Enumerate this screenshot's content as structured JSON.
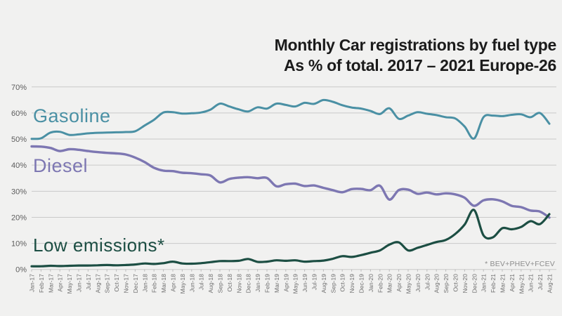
{
  "page": {
    "background": "#f1f1f0"
  },
  "title": {
    "line1": "Monthly Car registrations by fuel type",
    "line2": "As % of total. 2017 – 2021 Europe-26"
  },
  "footnote": "* BEV+PHEV+FCEV",
  "colors": {
    "gasoline": "#4a90a4",
    "diesel": "#7d77b2",
    "low_emissions": "#1c4e43",
    "grid": "#c9c9c9",
    "axis_text": "#5c5c5c",
    "x_tick_text": "#6e6e6e",
    "title_text": "#1b1b1b"
  },
  "chart_data": {
    "type": "line",
    "title": "Monthly Car registrations by fuel type As % of total. 2017 – 2021 Europe-26",
    "xlabel": "",
    "ylabel": "",
    "ylim": [
      0,
      70
    ],
    "yticks": [
      0,
      10,
      20,
      30,
      40,
      50,
      60,
      70
    ],
    "ytick_suffix": "%",
    "grid": true,
    "legend_position": "inline-left-labels",
    "x_labels": [
      "Jan-17",
      "Feb-17",
      "Mar-17",
      "Apr-17",
      "May-17",
      "Jun-17",
      "Jul-17",
      "Aug-17",
      "Sep-17",
      "Oct-17",
      "Nov-17",
      "Dec-17",
      "Jan-18",
      "Feb-18",
      "Mar-18",
      "Apr-18",
      "May-18",
      "Jun-18",
      "Jul-18",
      "Aug-18",
      "Sep-18",
      "Oct-18",
      "Nov-18",
      "Dec-18",
      "Jan-19",
      "Feb-19",
      "Mar-19",
      "Apr-19",
      "May-19",
      "Jun-19",
      "Jul-19",
      "Aug-19",
      "Sep-19",
      "Oct-19",
      "Nov-19",
      "Dec-19",
      "Jan-20",
      "Feb-20",
      "Mar-20",
      "Apr-20",
      "May-20",
      "Jun-20",
      "Jul-20",
      "Aug-20",
      "Sep-20",
      "Oct-20",
      "Nov-20",
      "Dec-20",
      "Jan-21",
      "Feb-21",
      "Mar-21",
      "Apr-21",
      "May-21",
      "Jun-21",
      "Jul-21",
      "Aug-21"
    ],
    "series": [
      {
        "name": "Gasoline",
        "inline_label": "Gasoline",
        "color": "#4a90a4",
        "values": [
          50.1,
          50.3,
          52.5,
          52.8,
          51.6,
          51.8,
          52.2,
          52.4,
          52.5,
          52.6,
          52.7,
          53.0,
          55.2,
          57.4,
          60.2,
          60.3,
          59.8,
          59.9,
          60.2,
          61.3,
          63.6,
          62.5,
          61.4,
          60.6,
          62.2,
          61.7,
          63.6,
          63.1,
          62.5,
          63.9,
          63.5,
          65.0,
          64.3,
          63.0,
          62.1,
          61.7,
          60.8,
          59.6,
          61.8,
          57.8,
          59.0,
          60.3,
          59.7,
          59.2,
          58.4,
          57.9,
          54.8,
          50.2,
          58.4,
          59.0,
          58.8,
          59.3,
          59.5,
          58.4,
          60.0,
          55.9
        ]
      },
      {
        "name": "Diesel",
        "inline_label": "Diesel",
        "color": "#7d77b2",
        "values": [
          47.2,
          47.1,
          46.6,
          45.4,
          46.1,
          45.9,
          45.4,
          45.0,
          44.7,
          44.5,
          44.1,
          42.9,
          41.2,
          39.0,
          37.9,
          37.7,
          37.1,
          36.9,
          36.5,
          36.0,
          33.4,
          34.7,
          35.2,
          35.4,
          35.0,
          35.1,
          31.9,
          32.7,
          32.9,
          32.0,
          32.2,
          31.3,
          30.4,
          29.6,
          30.8,
          30.9,
          30.4,
          32.1,
          26.8,
          30.4,
          30.6,
          29.0,
          29.5,
          28.8,
          29.2,
          28.8,
          27.5,
          24.4,
          26.5,
          26.9,
          26.1,
          24.4,
          23.9,
          22.6,
          22.2,
          19.9
        ]
      },
      {
        "name": "Low emissions",
        "inline_label": "Low emissions*",
        "color": "#1c4e43",
        "values": [
          1.2,
          1.2,
          1.4,
          1.3,
          1.4,
          1.5,
          1.5,
          1.6,
          1.7,
          1.6,
          1.7,
          1.9,
          2.3,
          2.1,
          2.4,
          3.0,
          2.3,
          2.2,
          2.4,
          2.8,
          3.2,
          3.2,
          3.3,
          4.0,
          2.9,
          3.0,
          3.5,
          3.3,
          3.5,
          3.0,
          3.2,
          3.4,
          4.1,
          5.1,
          4.8,
          5.5,
          6.4,
          7.3,
          9.5,
          10.4,
          7.3,
          8.3,
          9.4,
          10.5,
          11.3,
          13.6,
          17.2,
          22.8,
          13.1,
          12.3,
          15.8,
          15.4,
          16.3,
          18.5,
          17.4,
          21.2
        ]
      }
    ]
  }
}
